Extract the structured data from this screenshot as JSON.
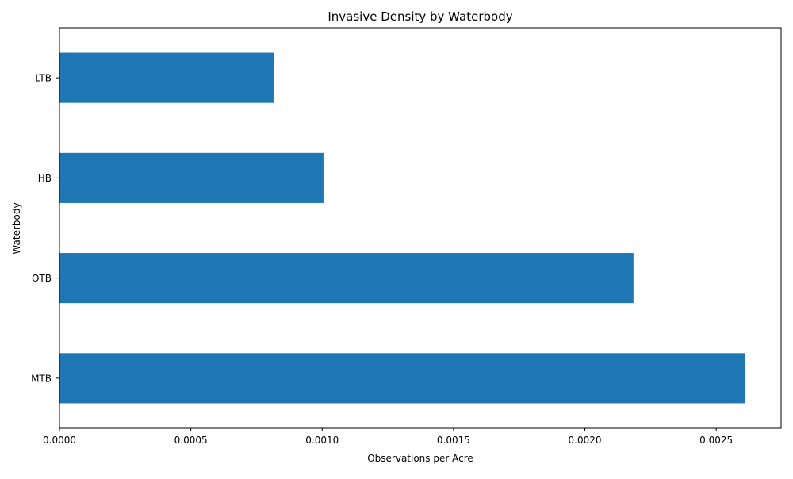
{
  "chart_data": {
    "type": "bar",
    "orientation": "horizontal",
    "title": "Invasive Density by Waterbody",
    "xlabel": "Observations per Acre",
    "ylabel": "Waterbody",
    "categories": [
      "MTB",
      "OTB",
      "HB",
      "LTB"
    ],
    "values": [
      0.00261,
      0.002185,
      0.001005,
      0.000815
    ],
    "xlim": [
      0,
      0.002747
    ],
    "x_ticks": [
      0,
      0.0005,
      0.001,
      0.0015,
      0.002,
      0.0025
    ],
    "x_tick_labels": [
      "0.0000",
      "0.0005",
      "0.0010",
      "0.0015",
      "0.0020",
      "0.0025"
    ],
    "grid": false,
    "legend": "none",
    "bar_color": "#1f77b4"
  }
}
